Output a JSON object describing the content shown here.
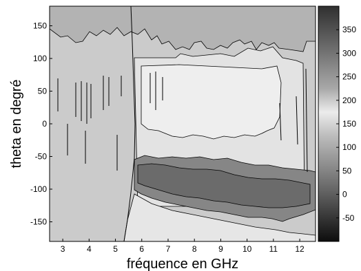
{
  "chart_data": {
    "type": "heatmap",
    "xlabel": "fréquence en GHz",
    "ylabel": "theta en degré",
    "x_ticks": [
      3,
      4,
      5,
      6,
      7,
      8,
      9,
      10,
      11,
      12
    ],
    "y_ticks": [
      150,
      100,
      50,
      0,
      -50,
      -100,
      -150
    ],
    "xlim": [
      2.5,
      12.6
    ],
    "ylim": [
      -180,
      180
    ],
    "colorbar": {
      "ticks": [
        350,
        300,
        250,
        200,
        150,
        100,
        50,
        0,
        -50
      ],
      "range": [
        -100,
        400
      ],
      "colormap": "gray"
    },
    "regions": [
      {
        "label": "background",
        "value": 160,
        "color": "#cbcbcb"
      },
      {
        "label": "upper-left-band",
        "value": 120,
        "color": "#b3b3b3"
      },
      {
        "label": "upper-right-plateau",
        "value": 210,
        "color": "#e3e3e3"
      },
      {
        "label": "mid-right-lobe",
        "value": 230,
        "color": "#eeeeee"
      },
      {
        "label": "low-band",
        "value": 60,
        "color": "#868686"
      },
      {
        "label": "dark-trough",
        "value": 20,
        "color": "#6b6b6b"
      },
      {
        "label": "lower-light-wedge",
        "value": 220,
        "color": "#e6e6e6"
      }
    ]
  }
}
